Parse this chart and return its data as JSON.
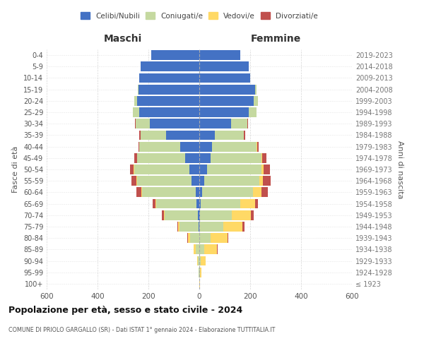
{
  "age_groups": [
    "100+",
    "95-99",
    "90-94",
    "85-89",
    "80-84",
    "75-79",
    "70-74",
    "65-69",
    "60-64",
    "55-59",
    "50-54",
    "45-49",
    "40-44",
    "35-39",
    "30-34",
    "25-29",
    "20-24",
    "15-19",
    "10-14",
    "5-9",
    "0-4"
  ],
  "birth_years": [
    "≤ 1923",
    "1924-1928",
    "1929-1933",
    "1934-1938",
    "1939-1943",
    "1944-1948",
    "1949-1953",
    "1954-1958",
    "1959-1963",
    "1964-1968",
    "1969-1973",
    "1974-1978",
    "1979-1983",
    "1984-1988",
    "1989-1993",
    "1994-1998",
    "1999-2003",
    "2004-2008",
    "2009-2013",
    "2014-2018",
    "2019-2023"
  ],
  "male": {
    "celibi": [
      0,
      0,
      0,
      0,
      0,
      3,
      5,
      10,
      15,
      30,
      40,
      55,
      75,
      130,
      195,
      235,
      245,
      240,
      235,
      230,
      190
    ],
    "coniugati": [
      1,
      2,
      5,
      15,
      35,
      75,
      130,
      160,
      210,
      215,
      215,
      190,
      160,
      100,
      55,
      25,
      10,
      3,
      0,
      0,
      0
    ],
    "vedovi": [
      0,
      1,
      2,
      8,
      10,
      5,
      5,
      3,
      3,
      3,
      2,
      0,
      0,
      0,
      0,
      0,
      0,
      0,
      0,
      0,
      0
    ],
    "divorziati": [
      0,
      0,
      0,
      0,
      2,
      3,
      8,
      10,
      20,
      20,
      15,
      10,
      5,
      5,
      2,
      0,
      0,
      0,
      0,
      0,
      0
    ]
  },
  "female": {
    "nubili": [
      0,
      0,
      0,
      0,
      0,
      0,
      3,
      5,
      10,
      20,
      30,
      45,
      50,
      60,
      125,
      195,
      215,
      220,
      200,
      195,
      160
    ],
    "coniugate": [
      1,
      2,
      5,
      20,
      45,
      95,
      125,
      155,
      200,
      215,
      215,
      200,
      175,
      115,
      65,
      30,
      15,
      5,
      0,
      0,
      0
    ],
    "vedove": [
      1,
      5,
      20,
      50,
      65,
      75,
      75,
      60,
      35,
      15,
      8,
      3,
      2,
      0,
      0,
      0,
      0,
      0,
      0,
      0,
      0
    ],
    "divorziate": [
      0,
      0,
      0,
      2,
      5,
      8,
      10,
      10,
      25,
      30,
      25,
      15,
      5,
      5,
      2,
      0,
      0,
      0,
      0,
      0,
      0
    ]
  },
  "colors": {
    "celibi": "#4472c4",
    "coniugati": "#c5d9a0",
    "vedovi": "#ffd966",
    "divorziati": "#c0504d"
  },
  "title": "Popolazione per età, sesso e stato civile - 2024",
  "subtitle": "COMUNE DI PRIOLO GARGALLO (SR) - Dati ISTAT 1° gennaio 2024 - Elaborazione TUTTITALIA.IT",
  "xlabel_left": "Maschi",
  "xlabel_right": "Femmine",
  "ylabel_left": "Fasce di età",
  "ylabel_right": "Anni di nascita",
  "xlim": 600,
  "bg_color": "#ffffff",
  "grid_color": "#cccccc"
}
